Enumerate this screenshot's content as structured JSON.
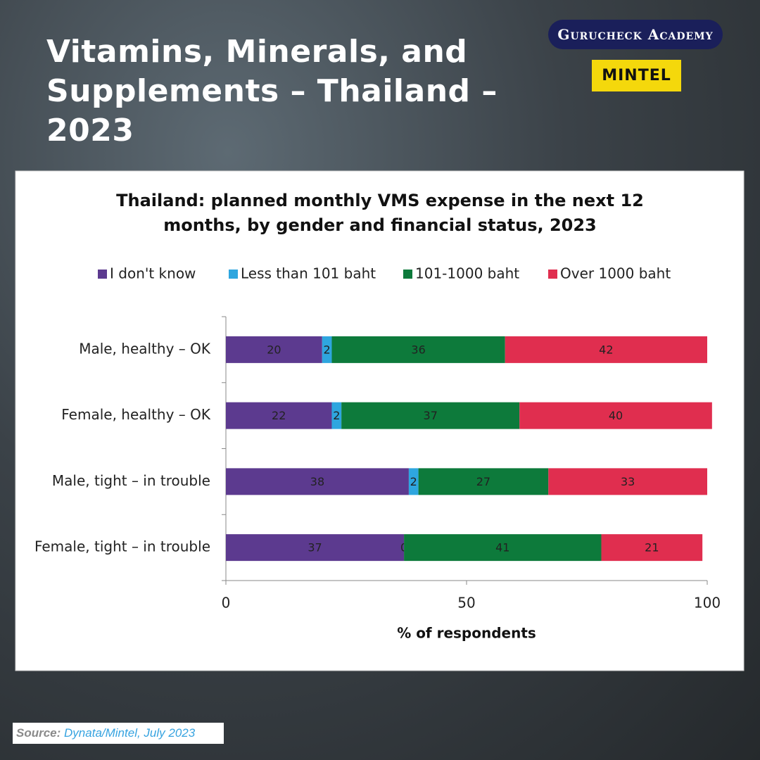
{
  "header": {
    "title": "Vitamins, Minerals, and Supplements – Thailand – 2023",
    "brand": "Gurucheck Academy",
    "logo": "MINTEL"
  },
  "chart_data": {
    "type": "stacked_barh",
    "title": "Thailand: planned monthly VMS expense in the next 12 months, by gender and financial status, 2023",
    "categories": [
      "Male, healthy – OK",
      "Female, healthy – OK",
      "Male, tight – in trouble",
      "Female, tight – in trouble"
    ],
    "series": [
      {
        "name": "I don't know",
        "color": "#5c3a8f",
        "values": [
          20,
          22,
          38,
          37
        ]
      },
      {
        "name": "Less than 101 baht",
        "color": "#2ea6df",
        "values": [
          2,
          2,
          2,
          0
        ]
      },
      {
        "name": "101-1000 baht",
        "color": "#0d7a3b",
        "values": [
          36,
          37,
          27,
          41
        ]
      },
      {
        "name": "Over 1000 baht",
        "color": "#e02e4f",
        "values": [
          42,
          40,
          33,
          21
        ]
      }
    ],
    "xlim": [
      0,
      100
    ],
    "xticks": [
      0,
      50,
      100
    ],
    "xlabel": "% of respondents",
    "legend": "top"
  },
  "source": {
    "label": "Source:",
    "text": "Dynata/Mintel, July 2023"
  }
}
